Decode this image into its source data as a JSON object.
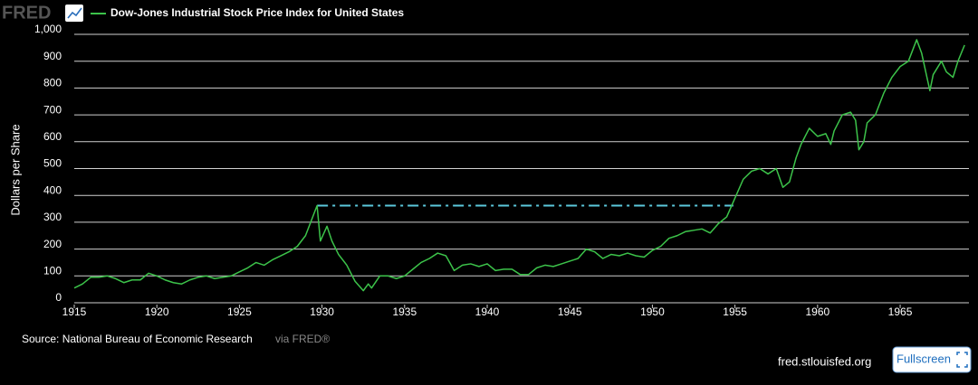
{
  "logo": "FRED",
  "source": "Source: National Bureau of Economic Research",
  "via": "via FRED®",
  "site": "fred.stlouisfed.org",
  "button": "Fullscreen",
  "chart_data": {
    "type": "line",
    "ylabel": "Dollars per Share",
    "xlim": [
      1915,
      1969
    ],
    "xticks": [
      1915,
      1920,
      1925,
      1930,
      1935,
      1940,
      1945,
      1950,
      1955,
      1960,
      1965
    ],
    "ylim": [
      0,
      1000
    ],
    "yticks": [
      0,
      100,
      200,
      300,
      400,
      500,
      600,
      700,
      800,
      900,
      {
        "value": 1000,
        "label": "1,000"
      }
    ],
    "grid": true,
    "series": [
      {
        "name": "Dow-Jones Industrial Stock Price Index for United States",
        "color": "#3cc34a",
        "x": [
          1915.0,
          1915.5,
          1916.0,
          1916.5,
          1917.0,
          1917.5,
          1918.0,
          1918.5,
          1919.0,
          1919.5,
          1920.0,
          1920.5,
          1921.0,
          1921.5,
          1922.0,
          1922.5,
          1923.0,
          1923.5,
          1924.0,
          1924.5,
          1925.0,
          1925.5,
          1926.0,
          1926.5,
          1927.0,
          1927.5,
          1928.0,
          1928.5,
          1929.0,
          1929.5,
          1929.7,
          1929.9,
          1930.3,
          1930.6,
          1931.0,
          1931.5,
          1932.0,
          1932.5,
          1932.8,
          1933.0,
          1933.5,
          1934.0,
          1934.5,
          1935.0,
          1935.5,
          1936.0,
          1936.5,
          1937.0,
          1937.5,
          1938.0,
          1938.5,
          1939.0,
          1939.5,
          1940.0,
          1940.5,
          1941.0,
          1941.5,
          1942.0,
          1942.5,
          1943.0,
          1943.5,
          1944.0,
          1944.5,
          1945.0,
          1945.5,
          1946.0,
          1946.5,
          1947.0,
          1947.5,
          1948.0,
          1948.5,
          1949.0,
          1949.5,
          1950.0,
          1950.5,
          1951.0,
          1951.5,
          1952.0,
          1952.5,
          1953.0,
          1953.5,
          1954.0,
          1954.5,
          1955.0,
          1955.5,
          1956.0,
          1956.5,
          1957.0,
          1957.5,
          1957.9,
          1958.3,
          1958.7,
          1959.0,
          1959.5,
          1960.0,
          1960.5,
          1960.8,
          1961.0,
          1961.5,
          1962.0,
          1962.3,
          1962.5,
          1962.8,
          1963.0,
          1963.5,
          1964.0,
          1964.5,
          1965.0,
          1965.5,
          1966.0,
          1966.3,
          1966.8,
          1967.0,
          1967.5,
          1967.8,
          1968.2,
          1968.5,
          1968.9
        ],
        "values": [
          55,
          70,
          95,
          95,
          100,
          90,
          75,
          85,
          85,
          110,
          100,
          85,
          75,
          70,
          85,
          95,
          100,
          90,
          95,
          100,
          115,
          130,
          150,
          140,
          160,
          175,
          190,
          210,
          250,
          330,
          362,
          230,
          285,
          230,
          180,
          140,
          80,
          45,
          70,
          55,
          100,
          100,
          90,
          100,
          125,
          150,
          165,
          185,
          175,
          120,
          140,
          145,
          135,
          145,
          120,
          125,
          125,
          105,
          105,
          130,
          140,
          135,
          145,
          155,
          165,
          200,
          190,
          165,
          180,
          175,
          185,
          175,
          170,
          195,
          210,
          240,
          250,
          265,
          270,
          275,
          260,
          295,
          320,
          390,
          460,
          490,
          500,
          480,
          500,
          430,
          450,
          540,
          590,
          650,
          620,
          630,
          590,
          640,
          700,
          710,
          680,
          570,
          600,
          670,
          700,
          780,
          840,
          880,
          900,
          980,
          930,
          790,
          850,
          900,
          860,
          840,
          900,
          960
        ]
      }
    ],
    "connector": {
      "color": "#5bc8dc",
      "x": [
        1929.7,
        1954.9
      ],
      "values": [
        362,
        362
      ]
    }
  }
}
